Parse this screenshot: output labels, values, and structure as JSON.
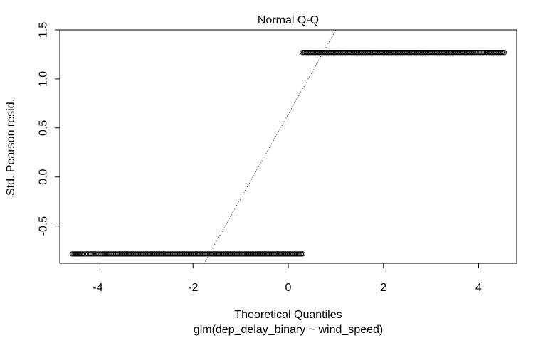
{
  "chart_data": {
    "type": "scatter",
    "title": "Normal Q-Q",
    "xlabel": "Theoretical Quantiles",
    "subtitle": "glm(dep_delay_binary ~ wind_speed)",
    "ylabel": "Std. Pearson resid.",
    "xlim": [
      -4.8,
      4.8
    ],
    "ylim": [
      -0.88,
      1.5
    ],
    "x_ticks": [
      -4,
      -2,
      0,
      2,
      4
    ],
    "x_tick_labels": [
      "-4",
      "-2",
      "0",
      "2",
      "4"
    ],
    "y_ticks": [
      -0.5,
      0.0,
      0.5,
      1.0,
      1.5
    ],
    "y_tick_labels": [
      "-0.5",
      "0.0",
      "0.5",
      "1.0",
      "1.5"
    ],
    "grid": false,
    "marker": "open-circle",
    "groups": [
      {
        "y": -0.785,
        "x": [
          -4.54,
          -4.33,
          -4.24,
          -4.17,
          -4.12,
          -4.08,
          -4.04,
          -4.0,
          -3.96,
          -3.9,
          -3.82,
          -3.72,
          -3.6,
          -3.45,
          -3.3,
          -3.1,
          -2.9,
          -2.7,
          -2.5,
          -2.3,
          -2.1,
          -1.9,
          -1.7,
          -1.5,
          -1.3,
          -1.1,
          -0.9,
          -0.7,
          -0.5,
          -0.3,
          -0.1,
          0.1,
          0.3
        ]
      },
      {
        "y": 1.27,
        "x": [
          0.3,
          0.45,
          0.6,
          0.8,
          1.0,
          1.2,
          1.4,
          1.6,
          1.8,
          2.0,
          2.2,
          2.4,
          2.6,
          2.8,
          3.0,
          3.2,
          3.4,
          3.6,
          3.8,
          3.9,
          3.96,
          4.02,
          4.08,
          4.14,
          4.22,
          4.32,
          4.54
        ]
      }
    ],
    "reference_line": {
      "intercept": 0.64,
      "slope": 0.86
    }
  }
}
